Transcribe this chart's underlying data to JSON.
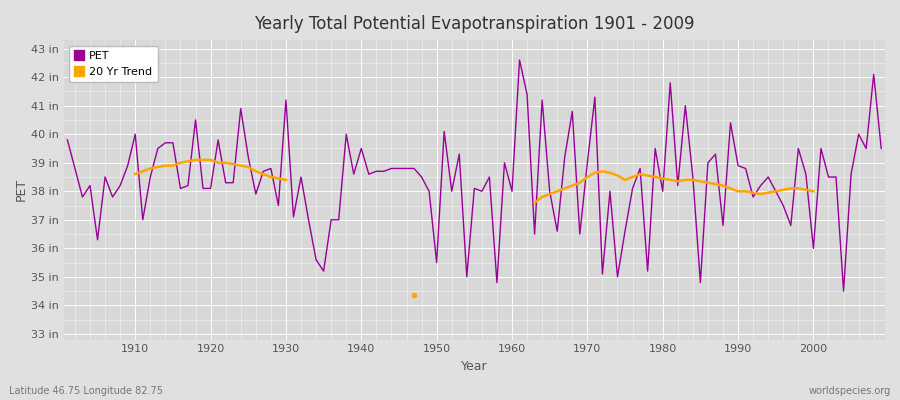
{
  "title": "Yearly Total Potential Evapotranspiration 1901 - 2009",
  "xlabel": "Year",
  "ylabel": "PET",
  "footnote_left": "Latitude 46.75 Longitude 82.75",
  "footnote_right": "worldspecies.org",
  "legend_pet": "PET",
  "legend_trend": "20 Yr Trend",
  "pet_color": "#990099",
  "trend_color": "#FFA500",
  "bg_color": "#E0E0E0",
  "plot_bg_color": "#D8D8D8",
  "ylim": [
    32.8,
    43.3
  ],
  "yticks": [
    33,
    34,
    35,
    36,
    37,
    38,
    39,
    40,
    41,
    42,
    43
  ],
  "xlim": [
    1900.5,
    2009.5
  ],
  "years": [
    1901,
    1902,
    1903,
    1904,
    1905,
    1906,
    1907,
    1908,
    1909,
    1910,
    1911,
    1912,
    1913,
    1914,
    1915,
    1916,
    1917,
    1918,
    1919,
    1920,
    1921,
    1922,
    1923,
    1924,
    1925,
    1926,
    1927,
    1928,
    1929,
    1930,
    1931,
    1932,
    1933,
    1934,
    1935,
    1936,
    1937,
    1938,
    1939,
    1940,
    1941,
    1942,
    1943,
    1944,
    1945,
    1946,
    1947,
    1948,
    1949,
    1950,
    1951,
    1952,
    1953,
    1954,
    1955,
    1956,
    1957,
    1958,
    1959,
    1960,
    1961,
    1962,
    1963,
    1964,
    1965,
    1966,
    1967,
    1968,
    1969,
    1970,
    1971,
    1972,
    1973,
    1974,
    1975,
    1976,
    1977,
    1978,
    1979,
    1980,
    1981,
    1982,
    1983,
    1984,
    1985,
    1986,
    1987,
    1988,
    1989,
    1990,
    1991,
    1992,
    1993,
    1994,
    1995,
    1996,
    1997,
    1998,
    1999,
    2000,
    2001,
    2002,
    2003,
    2004,
    2005,
    2006,
    2007,
    2008,
    2009
  ],
  "pet_values": [
    39.8,
    38.8,
    37.8,
    38.2,
    36.3,
    38.5,
    37.8,
    38.2,
    38.9,
    40.0,
    37.0,
    38.5,
    39.5,
    39.7,
    39.7,
    38.1,
    38.2,
    40.5,
    38.1,
    38.1,
    39.8,
    38.3,
    38.3,
    40.9,
    39.2,
    37.9,
    38.7,
    38.8,
    37.5,
    41.2,
    37.1,
    38.5,
    37.0,
    35.6,
    35.2,
    37.0,
    37.0,
    40.0,
    38.6,
    39.5,
    38.6,
    38.7,
    38.7,
    38.8,
    38.8,
    38.8,
    38.8,
    38.5,
    38.0,
    35.5,
    40.1,
    38.0,
    39.3,
    35.0,
    38.1,
    38.0,
    38.5,
    34.8,
    39.0,
    38.0,
    42.6,
    41.4,
    36.5,
    41.2,
    38.0,
    36.6,
    39.2,
    40.8,
    36.5,
    39.0,
    41.3,
    35.1,
    38.0,
    35.0,
    36.6,
    38.1,
    38.8,
    35.2,
    39.5,
    38.0,
    41.8,
    38.2,
    41.0,
    38.5,
    34.8,
    39.0,
    39.3,
    36.8,
    40.4,
    38.9,
    38.8,
    37.8,
    38.2,
    38.5,
    38.0,
    37.5,
    36.8,
    39.5,
    38.6,
    36.0,
    39.5,
    38.5,
    38.5,
    34.5,
    38.6,
    40.0,
    39.5,
    42.1,
    39.5
  ],
  "isolated_dot_year": 1947,
  "isolated_dot_val": 34.35,
  "trend_segments": [
    {
      "years": [
        1910,
        1911,
        1912,
        1913,
        1914,
        1915,
        1916,
        1917,
        1918,
        1919,
        1920,
        1921,
        1922,
        1923,
        1924,
        1925,
        1926,
        1927,
        1928,
        1929,
        1930
      ],
      "values": [
        38.6,
        38.7,
        38.8,
        38.85,
        38.9,
        38.9,
        39.0,
        39.05,
        39.1,
        39.1,
        39.1,
        39.0,
        39.0,
        38.95,
        38.9,
        38.85,
        38.7,
        38.6,
        38.5,
        38.45,
        38.4
      ]
    },
    {
      "years": [
        1963,
        1964,
        1965,
        1966,
        1967,
        1968,
        1969,
        1970,
        1971,
        1972,
        1973,
        1974,
        1975,
        1976,
        1977,
        1978,
        1979,
        1980,
        1981,
        1982,
        1983,
        1984,
        1985,
        1986,
        1987,
        1988,
        1989,
        1990,
        1991,
        1992,
        1993,
        1994,
        1995,
        1996,
        1997,
        1998,
        1999,
        2000
      ],
      "values": [
        37.6,
        37.8,
        37.9,
        38.0,
        38.1,
        38.2,
        38.3,
        38.5,
        38.65,
        38.7,
        38.65,
        38.55,
        38.4,
        38.5,
        38.6,
        38.55,
        38.5,
        38.45,
        38.4,
        38.35,
        38.4,
        38.4,
        38.35,
        38.3,
        38.25,
        38.2,
        38.1,
        38.0,
        38.0,
        37.95,
        37.9,
        37.95,
        38.0,
        38.05,
        38.1,
        38.1,
        38.05,
        38.0
      ]
    }
  ]
}
